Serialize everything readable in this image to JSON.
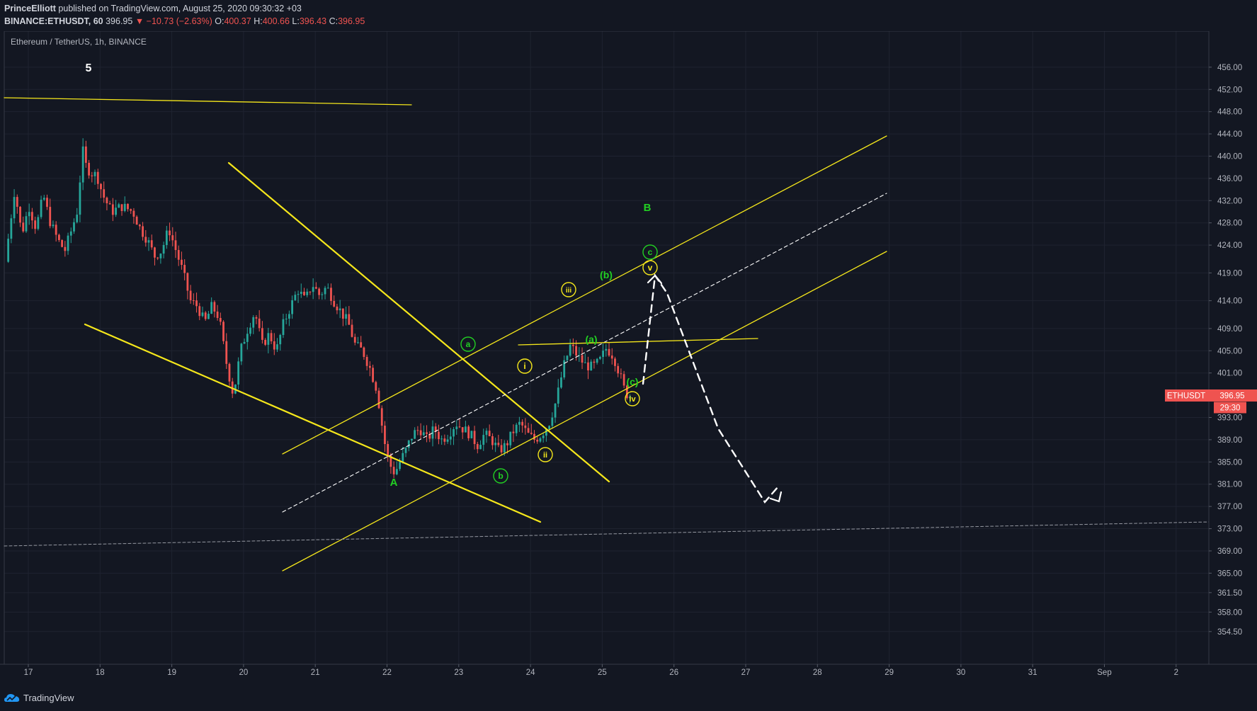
{
  "header": {
    "author": "PrinceElliott",
    "published": "published on TradingView.com, August 25, 2020 09:30:32 +03",
    "symbol": "BINANCE:ETHUSDT, 60",
    "last": "396.95",
    "change": "▼ −10.73 (−2.63%)",
    "o_label": "O:",
    "o_value": "400.37",
    "h_label": "H:",
    "h_value": "400.66",
    "l_label": "L:",
    "l_value": "396.43",
    "c_label": "C:",
    "c_value": "396.95"
  },
  "footer": {
    "brand": "TradingView"
  },
  "colors": {
    "background": "#131722",
    "up": "#26a69a",
    "down": "#ef5350",
    "trendline": "#f5e71b",
    "wave_green": "#22cf22",
    "wave_yellow": "#f5e71b",
    "projection": "#ffffff",
    "price_tag": "#ef5350"
  },
  "chart_data": {
    "type": "candlestick",
    "title": "Ethereum / TetherUS, 1h, BINANCE",
    "x_ticks": [
      "17",
      "18",
      "19",
      "20",
      "21",
      "22",
      "23",
      "24",
      "25",
      "26",
      "27",
      "28",
      "29",
      "30",
      "31",
      "Sep",
      "2"
    ],
    "y_ticks": [
      "456.00",
      "452.00",
      "448.00",
      "444.00",
      "440.00",
      "436.00",
      "432.00",
      "428.00",
      "424.00",
      "419.00",
      "414.00",
      "409.00",
      "405.00",
      "401.00",
      "393.00",
      "389.00",
      "385.00",
      "381.00",
      "377.00",
      "373.00",
      "369.00",
      "365.00",
      "361.50",
      "358.00",
      "354.50"
    ],
    "ylim": [
      351.8,
      457.0
    ],
    "xlim": [
      16.7,
      35.0
    ],
    "last_price": {
      "symbol": "ETHUSDT",
      "price": 396.95,
      "label": "396.95",
      "countdown": "29:30"
    },
    "price_path": [
      [
        16.72,
        421.0
      ],
      [
        16.85,
        434.0
      ],
      [
        16.95,
        426.0
      ],
      [
        17.05,
        431.0
      ],
      [
        17.15,
        427.0
      ],
      [
        17.25,
        433.0
      ],
      [
        17.35,
        428.0
      ],
      [
        17.45,
        425.0
      ],
      [
        17.55,
        423.0
      ],
      [
        17.65,
        427.0
      ],
      [
        17.72,
        430.0
      ],
      [
        17.8,
        441.0
      ],
      [
        17.85,
        438.0
      ],
      [
        17.92,
        437.0
      ],
      [
        18.0,
        436.5
      ],
      [
        18.08,
        433.0
      ],
      [
        18.2,
        430.0
      ],
      [
        18.35,
        431.0
      ],
      [
        18.5,
        430.0
      ],
      [
        18.6,
        427.0
      ],
      [
        18.7,
        425.0
      ],
      [
        18.8,
        422.0
      ],
      [
        18.9,
        423.0
      ],
      [
        19.0,
        427.0
      ],
      [
        19.1,
        423.0
      ],
      [
        19.2,
        419.0
      ],
      [
        19.3,
        414.0
      ],
      [
        19.4,
        413.0
      ],
      [
        19.5,
        410.0
      ],
      [
        19.6,
        413.0
      ],
      [
        19.7,
        411.0
      ],
      [
        19.8,
        403.0
      ],
      [
        19.9,
        397.0
      ],
      [
        20.0,
        405.0
      ],
      [
        20.1,
        409.0
      ],
      [
        20.2,
        412.0
      ],
      [
        20.3,
        406.0
      ],
      [
        20.4,
        408.0
      ],
      [
        20.5,
        405.0
      ],
      [
        20.6,
        410.0
      ],
      [
        20.7,
        413.0
      ],
      [
        20.8,
        416.0
      ],
      [
        20.9,
        414.0
      ],
      [
        21.0,
        417.0
      ],
      [
        21.1,
        415.0
      ],
      [
        21.2,
        416.5
      ],
      [
        21.3,
        414.0
      ],
      [
        21.4,
        412.0
      ],
      [
        21.5,
        410.0
      ],
      [
        21.6,
        406.0
      ],
      [
        21.7,
        405.0
      ],
      [
        21.8,
        402.0
      ],
      [
        21.9,
        398.0
      ],
      [
        22.0,
        389.0
      ],
      [
        22.05,
        386.0
      ],
      [
        22.1,
        384.0
      ],
      [
        22.15,
        383.0
      ],
      [
        22.22,
        385.0
      ],
      [
        22.3,
        387.0
      ],
      [
        22.4,
        390.0
      ],
      [
        22.5,
        391.0
      ],
      [
        22.6,
        389.0
      ],
      [
        22.7,
        391.0
      ],
      [
        22.8,
        389.0
      ],
      [
        22.9,
        390.0
      ],
      [
        23.0,
        392.0
      ],
      [
        23.1,
        391.0
      ],
      [
        23.2,
        390.0
      ],
      [
        23.3,
        388.0
      ],
      [
        23.4,
        390.0
      ],
      [
        23.5,
        389.0
      ],
      [
        23.6,
        387.0
      ],
      [
        23.7,
        388.0
      ],
      [
        23.8,
        390.5
      ],
      [
        23.9,
        392.0
      ],
      [
        24.0,
        390.0
      ],
      [
        24.1,
        389.0
      ],
      [
        24.2,
        390.0
      ],
      [
        24.3,
        392.0
      ],
      [
        24.4,
        396.0
      ],
      [
        24.5,
        402.0
      ],
      [
        24.6,
        406.0
      ],
      [
        24.7,
        404.0
      ],
      [
        24.8,
        402.5
      ],
      [
        24.9,
        402.0
      ],
      [
        25.0,
        403.0
      ],
      [
        25.1,
        405.5
      ],
      [
        25.2,
        404.0
      ],
      [
        25.28,
        401.0
      ],
      [
        25.35,
        398.0
      ],
      [
        25.4,
        396.95
      ]
    ]
  },
  "annotations": {
    "wave5": "5",
    "waveA": "A",
    "waveB": "B",
    "circ_a": "a",
    "circ_b": "b",
    "circ_c": "c",
    "circ_i": "i",
    "circ_ii": "ii",
    "circ_iii": "iii",
    "circ_iv": "iv",
    "circ_v": "v",
    "paren_a": "(a)",
    "paren_b": "(b)",
    "paren_c": "(c)"
  }
}
